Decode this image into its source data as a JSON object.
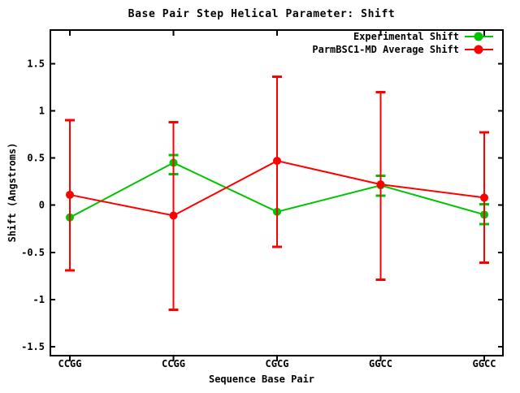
{
  "chart_data": {
    "type": "line",
    "title": "Base Pair Step Helical Parameter: Shift",
    "xlabel": "Sequence Base Pair",
    "ylabel": "Shift (Angstroms)",
    "categories": [
      "CCGG",
      "CCGG",
      "CGCG",
      "GGCC",
      "GGCC"
    ],
    "yticks": [
      1.5,
      1,
      0.5,
      0,
      -0.5,
      -1,
      -1.5
    ],
    "ylim": [
      -1.6,
      1.86
    ],
    "grid": false,
    "legend_position": "top-right-inside",
    "background_color": "#ffffff",
    "axis_color": "#000000",
    "series": [
      {
        "name": "Experimental Shift",
        "color": "#00c400",
        "marker": "filled-circle",
        "values": [
          -0.13,
          0.45,
          -0.07,
          0.21,
          -0.1
        ],
        "err_low": [
          -0.13,
          0.33,
          -0.07,
          0.1,
          -0.2
        ],
        "err_high": [
          -0.13,
          0.53,
          -0.07,
          0.31,
          0.01
        ]
      },
      {
        "name": "ParmBSC1-MD Average Shift",
        "color": "#ff0000",
        "marker": "filled-circle",
        "values": [
          0.11,
          -0.11,
          0.47,
          0.22,
          0.08
        ],
        "err_low": [
          -0.69,
          -1.11,
          -0.44,
          -0.79,
          -0.61
        ],
        "err_high": [
          0.9,
          0.88,
          1.36,
          1.2,
          0.77
        ]
      }
    ]
  }
}
